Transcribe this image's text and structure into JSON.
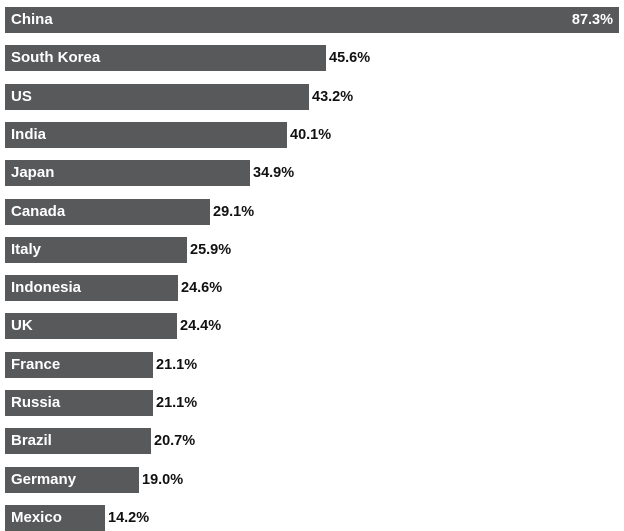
{
  "chart_data": {
    "type": "bar",
    "orientation": "horizontal",
    "categories": [
      "China",
      "South Korea",
      "US",
      "India",
      "Japan",
      "Canada",
      "Italy",
      "Indonesia",
      "UK",
      "France",
      "Russia",
      "Brazil",
      "Germany",
      "Mexico"
    ],
    "values": [
      87.3,
      45.6,
      43.2,
      40.1,
      34.9,
      29.1,
      25.9,
      24.6,
      24.4,
      21.1,
      21.1,
      20.7,
      19.0,
      14.2
    ],
    "value_labels": [
      "87.3%",
      "45.6%",
      "43.2%",
      "40.1%",
      "34.9%",
      "29.1%",
      "25.9%",
      "24.6%",
      "24.4%",
      "21.1%",
      "21.1%",
      "20.7%",
      "19.0%",
      "14.2%"
    ],
    "title": "",
    "xlabel": "",
    "ylabel": "",
    "xlim": [
      0,
      87.3
    ],
    "grid": false,
    "legend": "none",
    "bar_color": "#58595b",
    "category_label_color": "#ffffff",
    "value_label_color": "#111111"
  }
}
